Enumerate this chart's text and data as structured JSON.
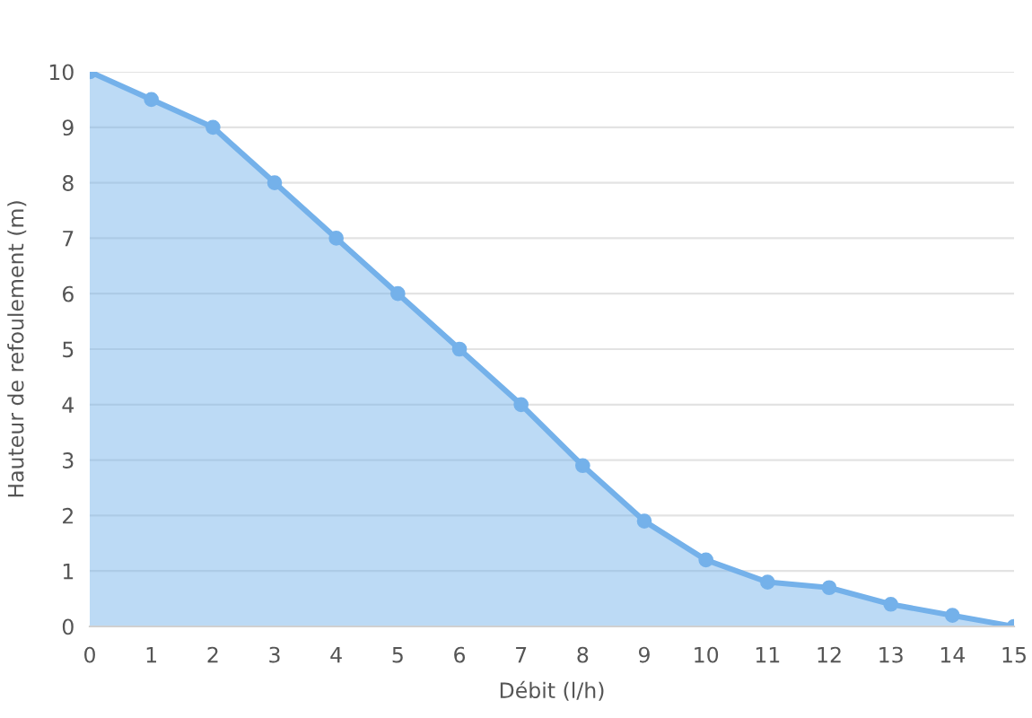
{
  "chart_data": {
    "type": "area",
    "xlabel": "Débit (l/h)",
    "ylabel": "Hauteur de refoulement (m)",
    "x": [
      0,
      1,
      2,
      3,
      4,
      5,
      6,
      7,
      8,
      9,
      10,
      11,
      12,
      13,
      14,
      15
    ],
    "series": [
      {
        "color": "#74b1ea",
        "values": [
          10,
          9.5,
          9,
          8,
          7,
          6,
          5,
          4,
          2.9,
          1.9,
          1.2,
          0.8,
          0.7,
          0.4,
          0.2,
          0
        ]
      }
    ],
    "xlim": [
      0,
      15
    ],
    "xticks": [
      0,
      1,
      2,
      3,
      4,
      5,
      6,
      7,
      8,
      9,
      10,
      11,
      12,
      13,
      14,
      15
    ],
    "ylim": [
      0,
      10
    ],
    "yticks": [
      0,
      1,
      2,
      3,
      4,
      5,
      6,
      7,
      8,
      9,
      10
    ],
    "grid": "y",
    "marker": "circle",
    "line_style": "solid"
  }
}
